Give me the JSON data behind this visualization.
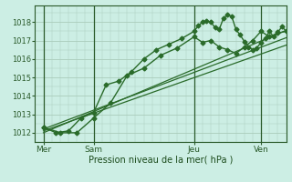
{
  "bg_color": "#cceee4",
  "grid_color": "#aaccbb",
  "line_color": "#2a6b2a",
  "title": "Pression niveau de la mer( hPa )",
  "ylim": [
    1011.5,
    1018.9
  ],
  "yticks": [
    1012,
    1013,
    1014,
    1015,
    1016,
    1017,
    1018
  ],
  "day_labels": [
    "Mer",
    "Sam",
    "Jeu",
    "Ven"
  ],
  "day_positions": [
    0,
    24,
    72,
    104
  ],
  "xlim": [
    -4,
    116
  ],
  "main_line_x": [
    0,
    8,
    16,
    24,
    32,
    40,
    48,
    56,
    64,
    72,
    76,
    80,
    84,
    88,
    92,
    96,
    100,
    104,
    108,
    112,
    116
  ],
  "main_line_y": [
    1012.3,
    1012.0,
    1012.0,
    1012.8,
    1013.6,
    1015.1,
    1015.5,
    1016.2,
    1016.6,
    1017.2,
    1016.9,
    1017.0,
    1016.65,
    1016.5,
    1016.3,
    1016.65,
    1017.0,
    1017.5,
    1017.2,
    1017.4,
    1017.5
  ],
  "main2_line_x": [
    0,
    6,
    12,
    18,
    24,
    30,
    36,
    42,
    48,
    54,
    60,
    66,
    72,
    74,
    76,
    78,
    80,
    82,
    84,
    86,
    88,
    90,
    92,
    94,
    96,
    98,
    100,
    102,
    104,
    106,
    108,
    110,
    112,
    114,
    116
  ],
  "main2_line_y": [
    1012.3,
    1012.0,
    1012.1,
    1012.8,
    1013.1,
    1014.6,
    1014.8,
    1015.3,
    1016.0,
    1016.5,
    1016.8,
    1017.1,
    1017.5,
    1017.8,
    1018.0,
    1018.05,
    1018.0,
    1017.7,
    1017.6,
    1018.2,
    1018.4,
    1018.3,
    1017.6,
    1017.3,
    1016.95,
    1016.65,
    1016.5,
    1016.6,
    1016.9,
    1017.1,
    1017.5,
    1017.2,
    1017.45,
    1017.75,
    1017.5
  ],
  "trend1_x": [
    0,
    116
  ],
  "trend1_y": [
    1012.2,
    1017.15
  ],
  "trend2_x": [
    0,
    116
  ],
  "trend2_y": [
    1012.1,
    1016.75
  ],
  "trend3_x": [
    0,
    116
  ],
  "trend3_y": [
    1012.0,
    1017.55
  ],
  "vline_color": "#2a5a2a",
  "marker_size": 2.5
}
